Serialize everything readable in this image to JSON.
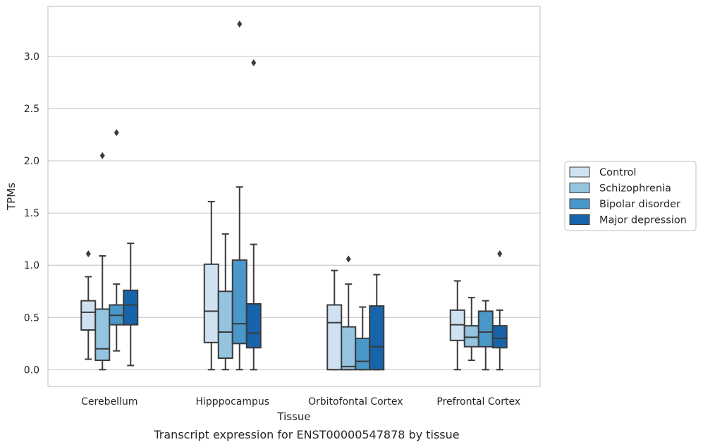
{
  "caption": "Transcript expression for ENST00000547878 by tissue",
  "chart_data": {
    "type": "box",
    "xlabel": "Tissue",
    "ylabel": "TPMs",
    "ylim": [
      -0.16,
      3.48
    ],
    "yticks": [
      "0.0",
      "0.5",
      "1.0",
      "1.5",
      "2.0",
      "2.5",
      "3.0"
    ],
    "categories": [
      "Cerebellum",
      "Hipppocampus",
      "Orbitofontal Cortex",
      "Prefrontal Cortex"
    ],
    "grid": "horizontal",
    "legend_position": "right",
    "series": [
      {
        "name": "Control",
        "color": "#d0e1f2",
        "boxes": [
          {
            "whislo": 0.1,
            "q1": 0.38,
            "med": 0.55,
            "q3": 0.66,
            "whishi": 0.89,
            "fliers": [
              1.11
            ]
          },
          {
            "whislo": 0.0,
            "q1": 0.26,
            "med": 0.56,
            "q3": 1.01,
            "whishi": 1.61,
            "fliers": []
          },
          {
            "whislo": 0.0,
            "q1": 0.0,
            "med": 0.45,
            "q3": 0.62,
            "whishi": 0.95,
            "fliers": []
          },
          {
            "whislo": 0.0,
            "q1": 0.28,
            "med": 0.43,
            "q3": 0.57,
            "whishi": 0.85,
            "fliers": []
          }
        ]
      },
      {
        "name": "Schizophrenia",
        "color": "#94c4df",
        "boxes": [
          {
            "whislo": 0.0,
            "q1": 0.09,
            "med": 0.2,
            "q3": 0.58,
            "whishi": 1.09,
            "fliers": [
              2.05
            ]
          },
          {
            "whislo": 0.0,
            "q1": 0.11,
            "med": 0.36,
            "q3": 0.75,
            "whishi": 1.3,
            "fliers": []
          },
          {
            "whislo": 0.0,
            "q1": 0.0,
            "med": 0.03,
            "q3": 0.41,
            "whishi": 0.82,
            "fliers": [
              1.06
            ]
          },
          {
            "whislo": 0.09,
            "q1": 0.22,
            "med": 0.31,
            "q3": 0.42,
            "whishi": 0.69,
            "fliers": []
          }
        ]
      },
      {
        "name": "Bipolar disorder",
        "color": "#4a98c9",
        "boxes": [
          {
            "whislo": 0.18,
            "q1": 0.43,
            "med": 0.52,
            "q3": 0.62,
            "whishi": 0.82,
            "fliers": [
              2.27
            ]
          },
          {
            "whislo": 0.0,
            "q1": 0.25,
            "med": 0.44,
            "q3": 1.05,
            "whishi": 1.75,
            "fliers": [
              3.31
            ]
          },
          {
            "whislo": 0.0,
            "q1": 0.0,
            "med": 0.08,
            "q3": 0.3,
            "whishi": 0.6,
            "fliers": []
          },
          {
            "whislo": 0.0,
            "q1": 0.22,
            "med": 0.36,
            "q3": 0.56,
            "whishi": 0.66,
            "fliers": []
          }
        ]
      },
      {
        "name": "Major depression",
        "color": "#1764ab",
        "boxes": [
          {
            "whislo": 0.04,
            "q1": 0.43,
            "med": 0.62,
            "q3": 0.76,
            "whishi": 1.21,
            "fliers": []
          },
          {
            "whislo": 0.0,
            "q1": 0.21,
            "med": 0.35,
            "q3": 0.63,
            "whishi": 1.2,
            "fliers": [
              2.94
            ]
          },
          {
            "whislo": 0.0,
            "q1": 0.0,
            "med": 0.22,
            "q3": 0.61,
            "whishi": 0.91,
            "fliers": []
          },
          {
            "whislo": 0.0,
            "q1": 0.21,
            "med": 0.3,
            "q3": 0.42,
            "whishi": 0.57,
            "fliers": [
              1.11
            ]
          }
        ]
      }
    ]
  }
}
